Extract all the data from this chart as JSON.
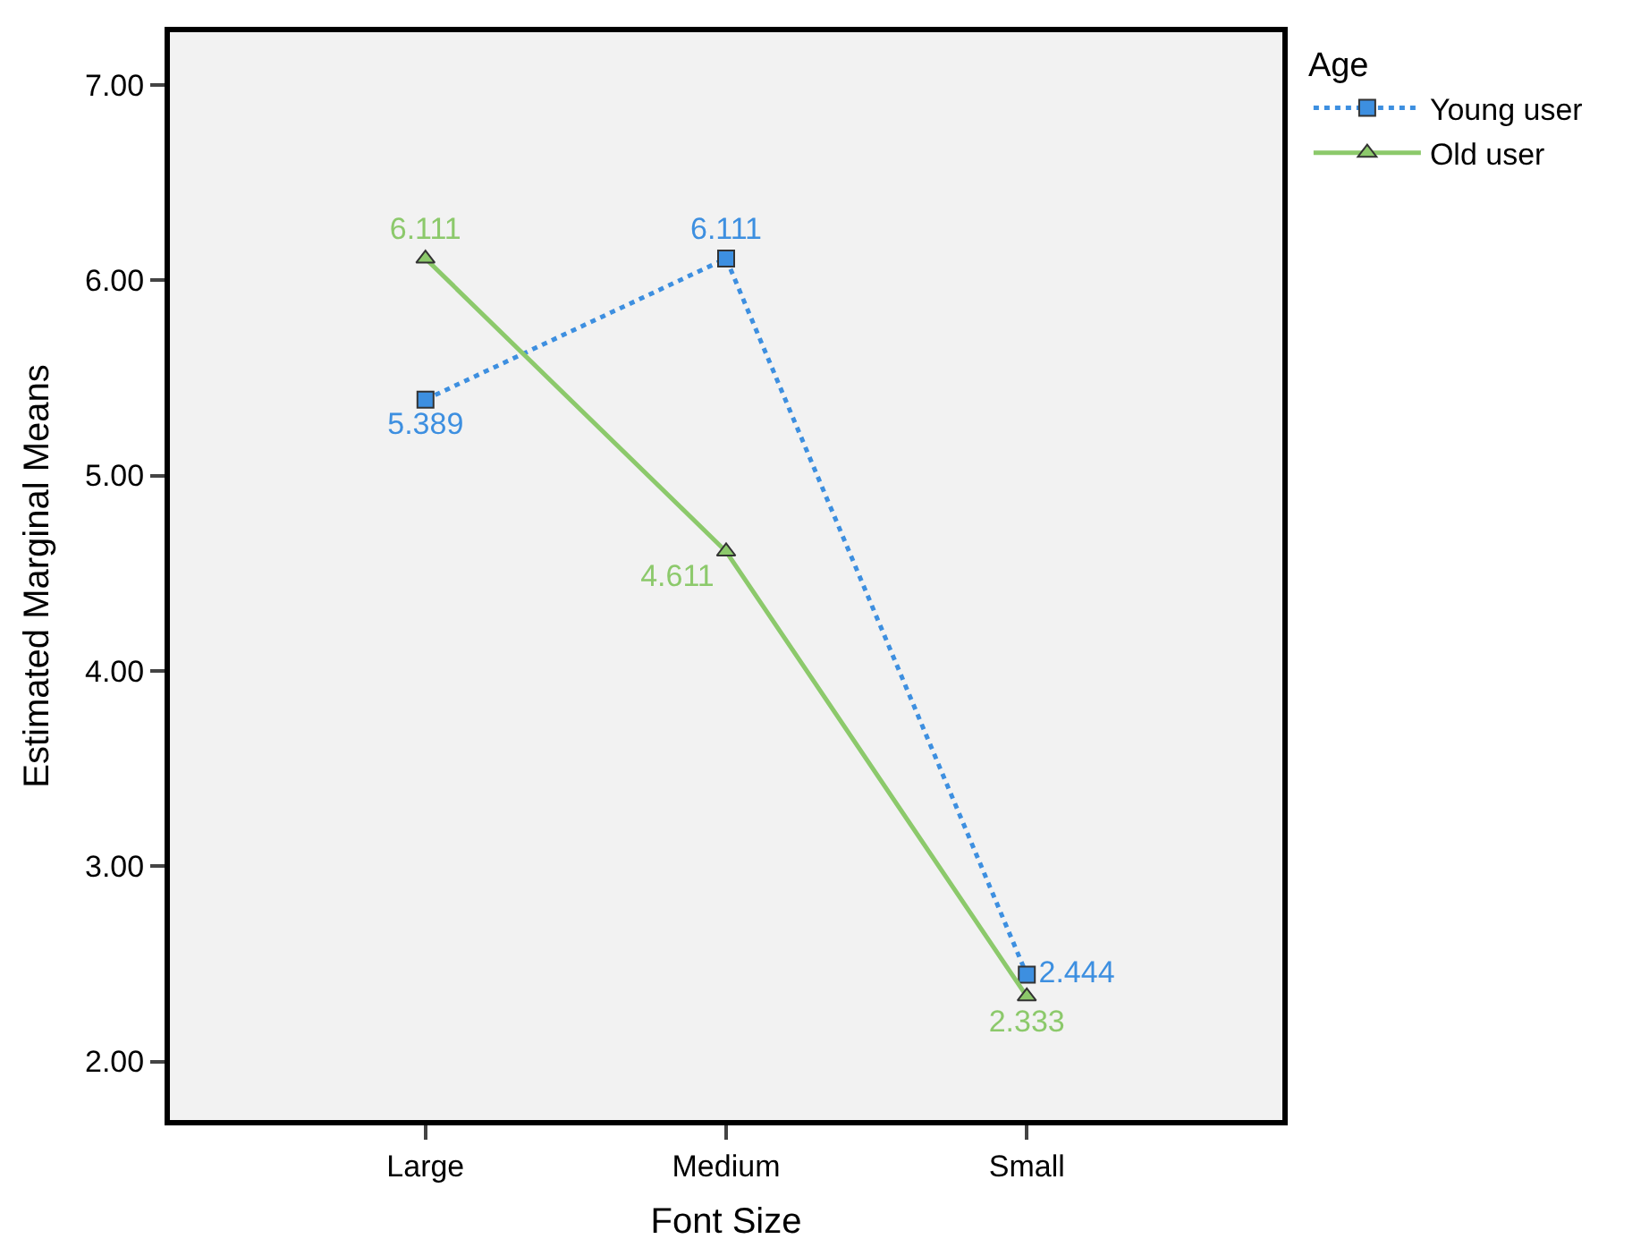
{
  "chart_data": {
    "type": "line",
    "xlabel": "Font Size",
    "ylabel": "Estimated Marginal Means",
    "legend_title": "Age",
    "categories": [
      "Large",
      "Medium",
      "Small"
    ],
    "series": [
      {
        "name": "Young user",
        "color": "#3d8fe0",
        "values": [
          5.389,
          6.111,
          2.444
        ],
        "marker": "square",
        "line_style": "dotted"
      },
      {
        "name": "Old user",
        "color": "#8cc96b",
        "values": [
          6.111,
          4.611,
          2.333
        ],
        "marker": "triangle",
        "line_style": "solid"
      }
    ],
    "ylim": [
      1.7,
      7.27
    ],
    "yticks": [
      {
        "value": 2,
        "label": "2.00"
      },
      {
        "value": 3,
        "label": "3.00"
      },
      {
        "value": 4,
        "label": "4.00"
      },
      {
        "value": 5,
        "label": "5.00"
      },
      {
        "value": 6,
        "label": "6.00"
      },
      {
        "value": 7,
        "label": "7.00"
      }
    ],
    "data_labels": true,
    "grid": false,
    "legend": "top right"
  }
}
